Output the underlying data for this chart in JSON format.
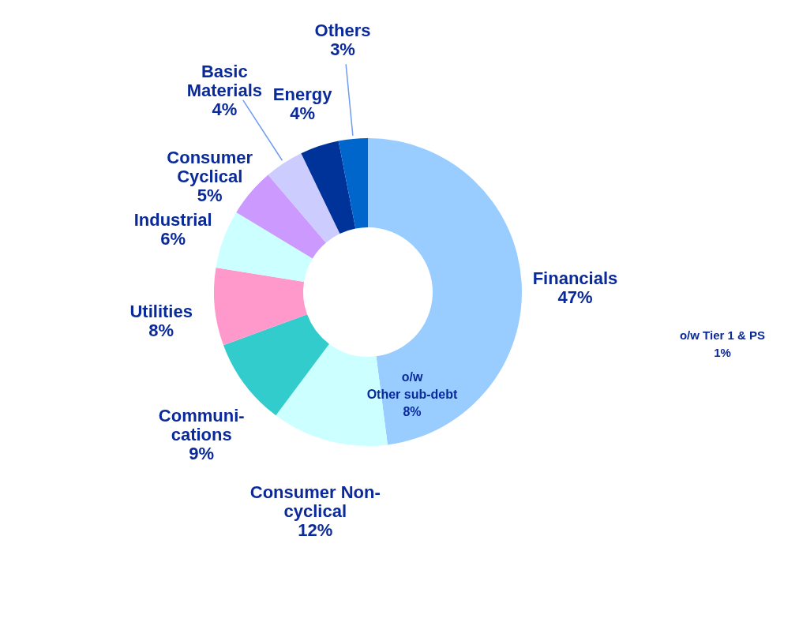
{
  "chart_data": {
    "type": "donut",
    "categories": [
      "Financials",
      "Consumer Non-cyclical",
      "Communi-cations",
      "Utilities",
      "Industrial",
      "Consumer Cyclical",
      "Basic Materials",
      "Energy",
      "Others"
    ],
    "values": [
      47,
      12,
      9,
      8,
      6,
      5,
      4,
      4,
      3
    ],
    "value_labels": [
      "47%",
      "12%",
      "9%",
      "8%",
      "6%",
      "5%",
      "4%",
      "4%",
      "3%"
    ],
    "colors": [
      "#99ccff",
      "#ccffff",
      "#33cccc",
      "#ff99cc",
      "#ccffff",
      "#cc99ff",
      "#ccccff",
      "#003399",
      "#0066cc"
    ],
    "annotations": [
      "o/w\nOther sub-debt\n8%",
      "o/w Tier 1 & PS\n1%"
    ]
  }
}
